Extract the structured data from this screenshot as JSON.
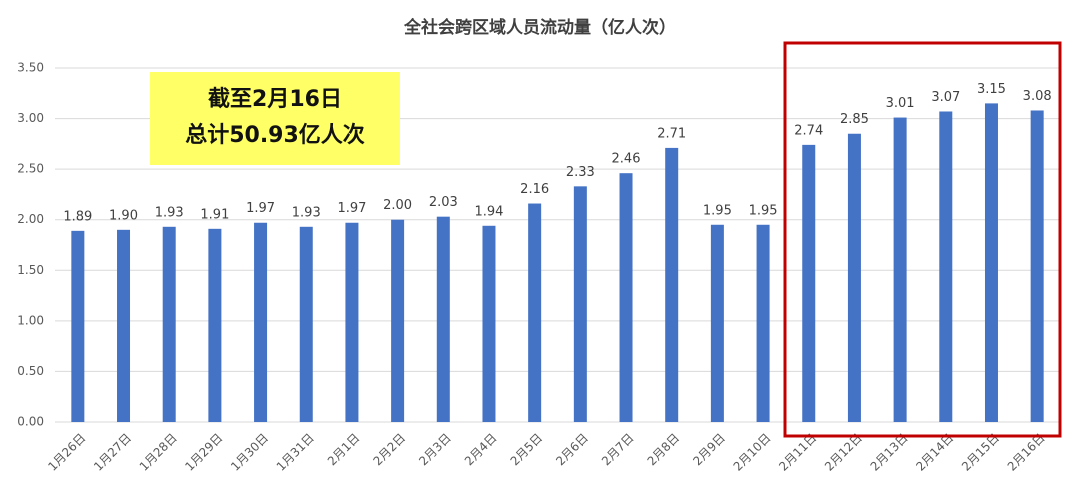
{
  "chart_data": {
    "type": "bar",
    "title": "全社会跨区域人员流动量（亿人次）",
    "categories": [
      "1月26日",
      "1月27日",
      "1月28日",
      "1月29日",
      "1月30日",
      "1月31日",
      "2月1日",
      "2月2日",
      "2月3日",
      "2月4日",
      "2月5日",
      "2月6日",
      "2月7日",
      "2月8日",
      "2月9日",
      "2月10日",
      "2月11日",
      "2月12日",
      "2月13日",
      "2月14日",
      "2月15日",
      "2月16日"
    ],
    "values": [
      1.89,
      1.9,
      1.93,
      1.91,
      1.97,
      1.93,
      1.97,
      2.0,
      2.03,
      1.94,
      2.16,
      2.33,
      2.46,
      2.71,
      1.95,
      1.95,
      2.74,
      2.85,
      3.01,
      3.07,
      3.15,
      3.08
    ],
    "value_labels": [
      "1.89",
      "1.90",
      "1.93",
      "1.91",
      "1.97",
      "1.93",
      "1.97",
      "2.00",
      "2.03",
      "1.94",
      "2.16",
      "2.33",
      "2.46",
      "2.71",
      "1.95",
      "1.95",
      "2.74",
      "2.85",
      "3.01",
      "3.07",
      "3.15",
      "3.08"
    ],
    "color": "#4472c4",
    "ylim": [
      0,
      3.5
    ],
    "yticks": [
      {
        "value": 0,
        "label": "0.00"
      },
      {
        "value": 0.5,
        "label": "0.50"
      },
      {
        "value": 1,
        "label": "1.00"
      },
      {
        "value": 1.5,
        "label": "1.50"
      },
      {
        "value": 2,
        "label": "2.00"
      },
      {
        "value": 2.5,
        "label": "2.50"
      },
      {
        "value": 3,
        "label": "3.00"
      },
      {
        "value": 3.5,
        "label": "3.50"
      }
    ],
    "grid": true,
    "annotation": [
      "截至2月16日",
      "总计50.93亿人次"
    ]
  }
}
